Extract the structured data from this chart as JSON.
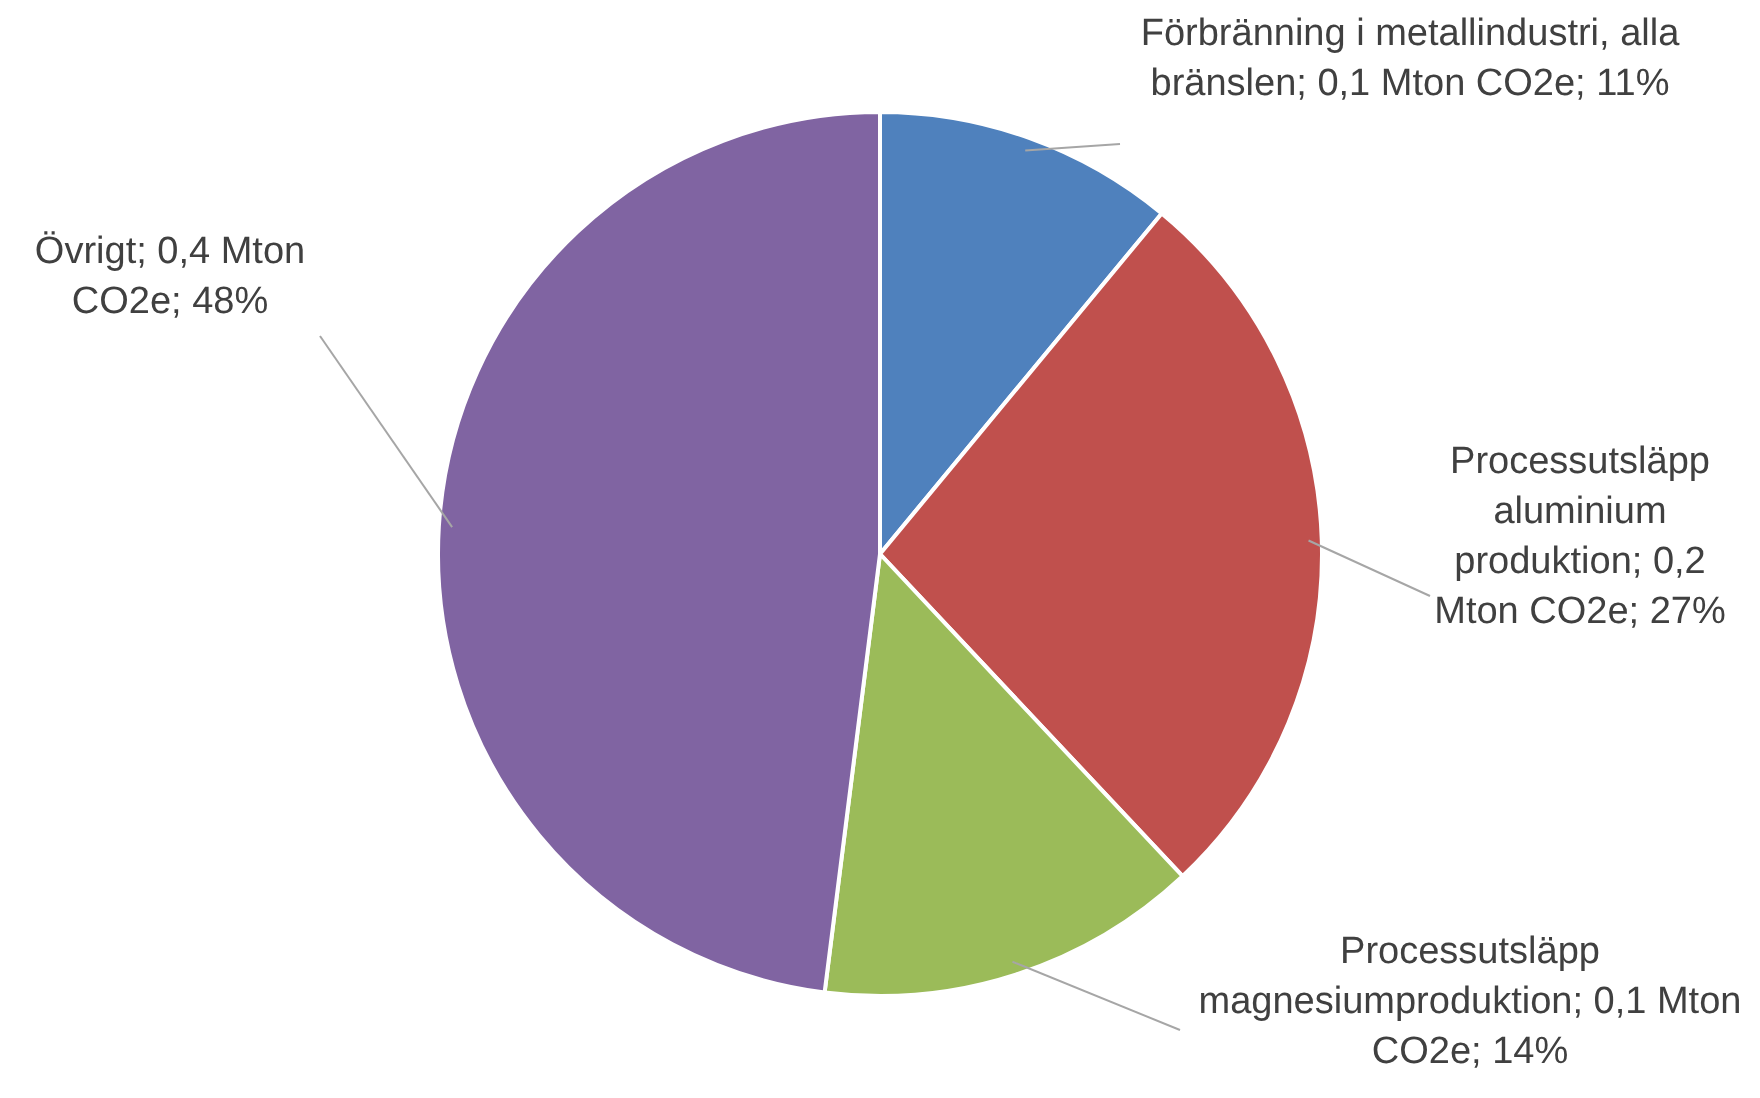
{
  "chart_data": {
    "type": "pie",
    "categories": [
      "Förbränning i metallindustri, alla bränslen",
      "Processutsläpp aluminium produktion",
      "Processutsläpp magnesiumproduktion",
      "Övrigt"
    ],
    "values": [
      11,
      27,
      14,
      48
    ],
    "value_labels": [
      "0,1 Mton CO2e; 11%",
      "0,2 Mton CO2e; 27%",
      "0,1 Mton CO2e; 14%",
      "0,4 Mton CO2e; 48%"
    ],
    "colors": [
      "#4f81bd",
      "#c0504d",
      "#9bbb59",
      "#8064a2"
    ],
    "legend": false
  }
}
